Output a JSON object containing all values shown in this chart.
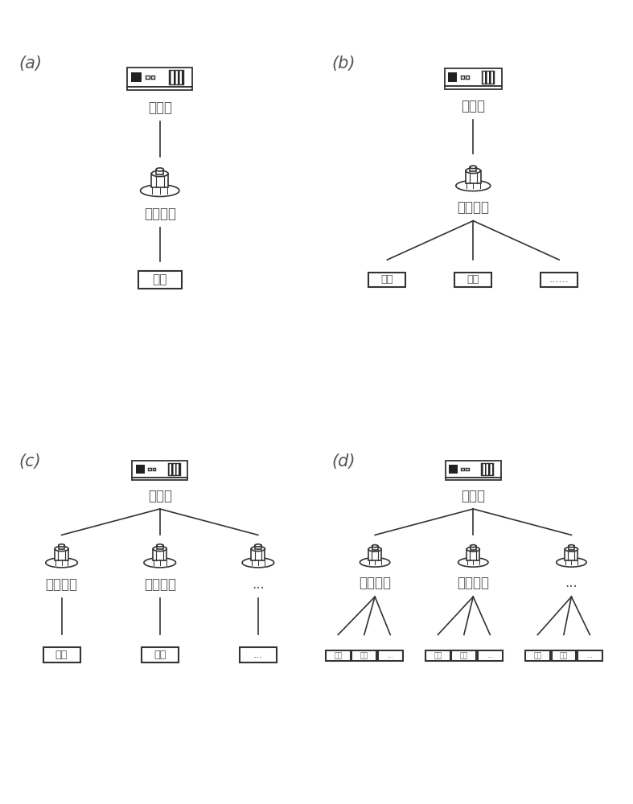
{
  "panels": [
    "(a)",
    "(b)",
    "(c)",
    "(d)"
  ],
  "bg_color": "#ffffff",
  "line_color": "#333333",
  "text_color": "#555555",
  "font_size_panel": 15,
  "font_size_chinese": 12,
  "controller_label": "主控器",
  "lidar_label": "激光雷达",
  "lane_label": "车道",
  "dots_label": "......",
  "dots2_label": "...",
  "border_color": "#aaaaaa"
}
